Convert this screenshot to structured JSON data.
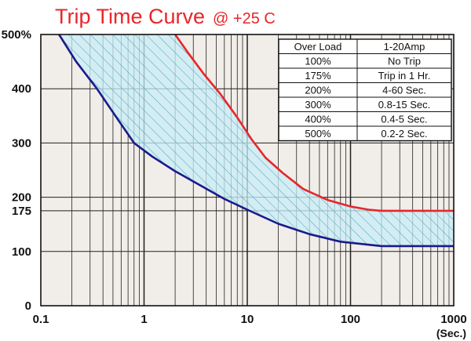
{
  "chart_data": {
    "type": "line",
    "title": "Trip Time Curve",
    "subtitle": "@ +25 C",
    "x_unit_label": "(Sec.)",
    "x_scale": "log",
    "xlim": [
      0.1,
      1000
    ],
    "x_ticks": [
      "0.1",
      "1",
      "10",
      "100",
      "1000"
    ],
    "ylim": [
      0,
      500
    ],
    "y_ticks": [
      {
        "value": 500,
        "label": "500%"
      },
      {
        "value": 400,
        "label": "400"
      },
      {
        "value": 300,
        "label": "300"
      },
      {
        "value": 200,
        "label": "200"
      },
      {
        "value": 175,
        "label": "175"
      },
      {
        "value": 100,
        "label": "100"
      },
      {
        "value": 0,
        "label": "0"
      }
    ],
    "grid": true,
    "series": [
      {
        "color": "#1a1a8c",
        "x": [
          0.15,
          0.22,
          0.35,
          0.55,
          0.8,
          1.2,
          2,
          3.5,
          6,
          10,
          20,
          40,
          80,
          200,
          1000
        ],
        "y": [
          500,
          450,
          400,
          345,
          300,
          275,
          248,
          222,
          197,
          177,
          151,
          132,
          118,
          110,
          110
        ]
      },
      {
        "color": "#e8262a",
        "x": [
          2,
          2.7,
          3.8,
          5.5,
          8,
          11,
          15,
          22,
          35,
          60,
          100,
          150,
          200,
          1000
        ],
        "y": [
          500,
          465,
          427,
          390,
          347,
          307,
          273,
          245,
          215,
          195,
          183,
          177,
          175,
          175
        ]
      }
    ],
    "band_fill": "#c8ecf5",
    "table": {
      "headers": [
        "Over Load",
        "1-20Amp"
      ],
      "rows": [
        [
          "100%",
          "No Trip"
        ],
        [
          "175%",
          "Trip in 1 Hr."
        ],
        [
          "200%",
          "4-60 Sec."
        ],
        [
          "300%",
          "0.8-15 Sec."
        ],
        [
          "400%",
          "0.4-5 Sec."
        ],
        [
          "500%",
          "0.2-2 Sec."
        ]
      ]
    }
  }
}
